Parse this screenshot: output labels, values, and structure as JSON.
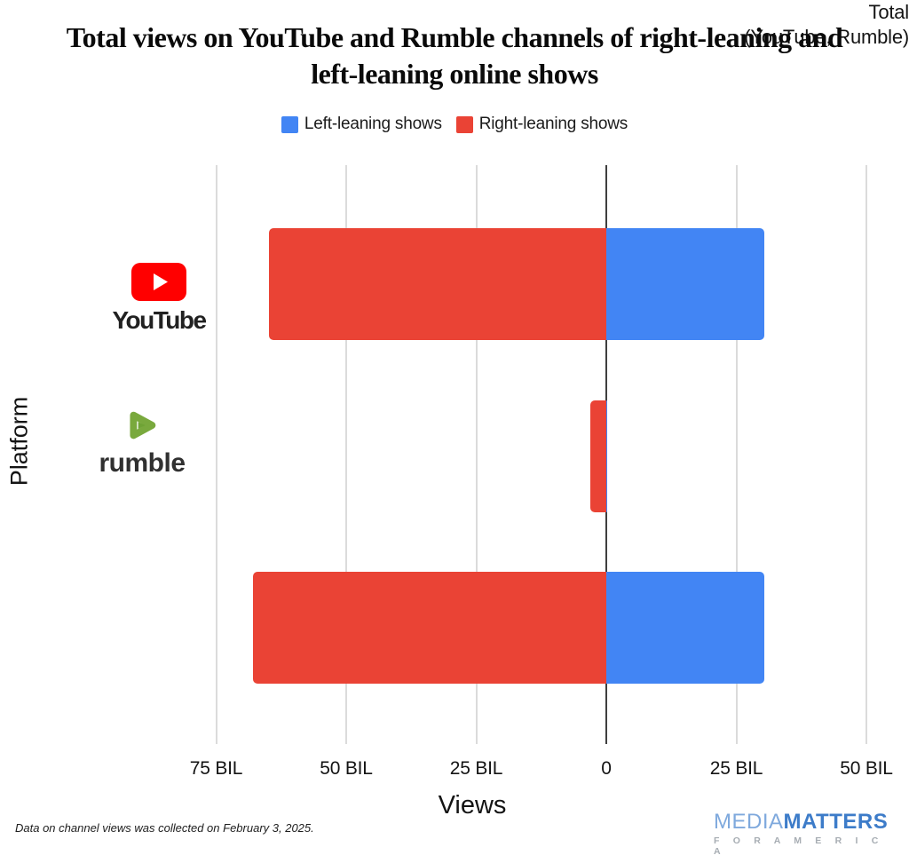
{
  "title_lines": [
    "Total views on YouTube and Rumble channels of right-leaning and",
    "left-leaning online shows"
  ],
  "footnote": "Data on channel views was collected on February 3, 2025.",
  "branding": {
    "media": "MEDIA",
    "matters": "MATTERS",
    "tagline": "F O R   A M E R I C A"
  },
  "category_labels": {
    "youtube_wordmark": "YouTube",
    "rumble_wordmark": "rumble",
    "total_line1": "Total",
    "total_line2": "(YouTube, Rumble)"
  },
  "chart_data": {
    "type": "bar",
    "orientation": "horizontal-diverging",
    "title": "Total views on YouTube and Rumble channels of right-leaning and left-leaning online shows",
    "categories": [
      "YouTube",
      "Rumble",
      "Total (YouTube, Rumble)"
    ],
    "category_keys": [
      "youtube",
      "rumble",
      "total"
    ],
    "series": [
      {
        "name": "Left-leaning shows",
        "color": "#4285F4",
        "axis_side": "right",
        "values": [
          30.4,
          0.02,
          30.4
        ]
      },
      {
        "name": "Right-leaning shows",
        "color": "#EA4335",
        "axis_side": "left",
        "values": [
          64.9,
          3.0,
          67.9
        ]
      }
    ],
    "unit": "billions of views",
    "xlabel": "Views",
    "ylabel": "Platform",
    "x_ticks": [
      "75 BIL",
      "50 BIL",
      "25 BIL",
      "0",
      "25 BIL",
      "50 BIL"
    ],
    "x_tick_values": [
      -75,
      -50,
      -25,
      0,
      25,
      50
    ],
    "xlim": [
      -82,
      56
    ],
    "grid": true,
    "legend_position": "top",
    "zero_line": true
  }
}
